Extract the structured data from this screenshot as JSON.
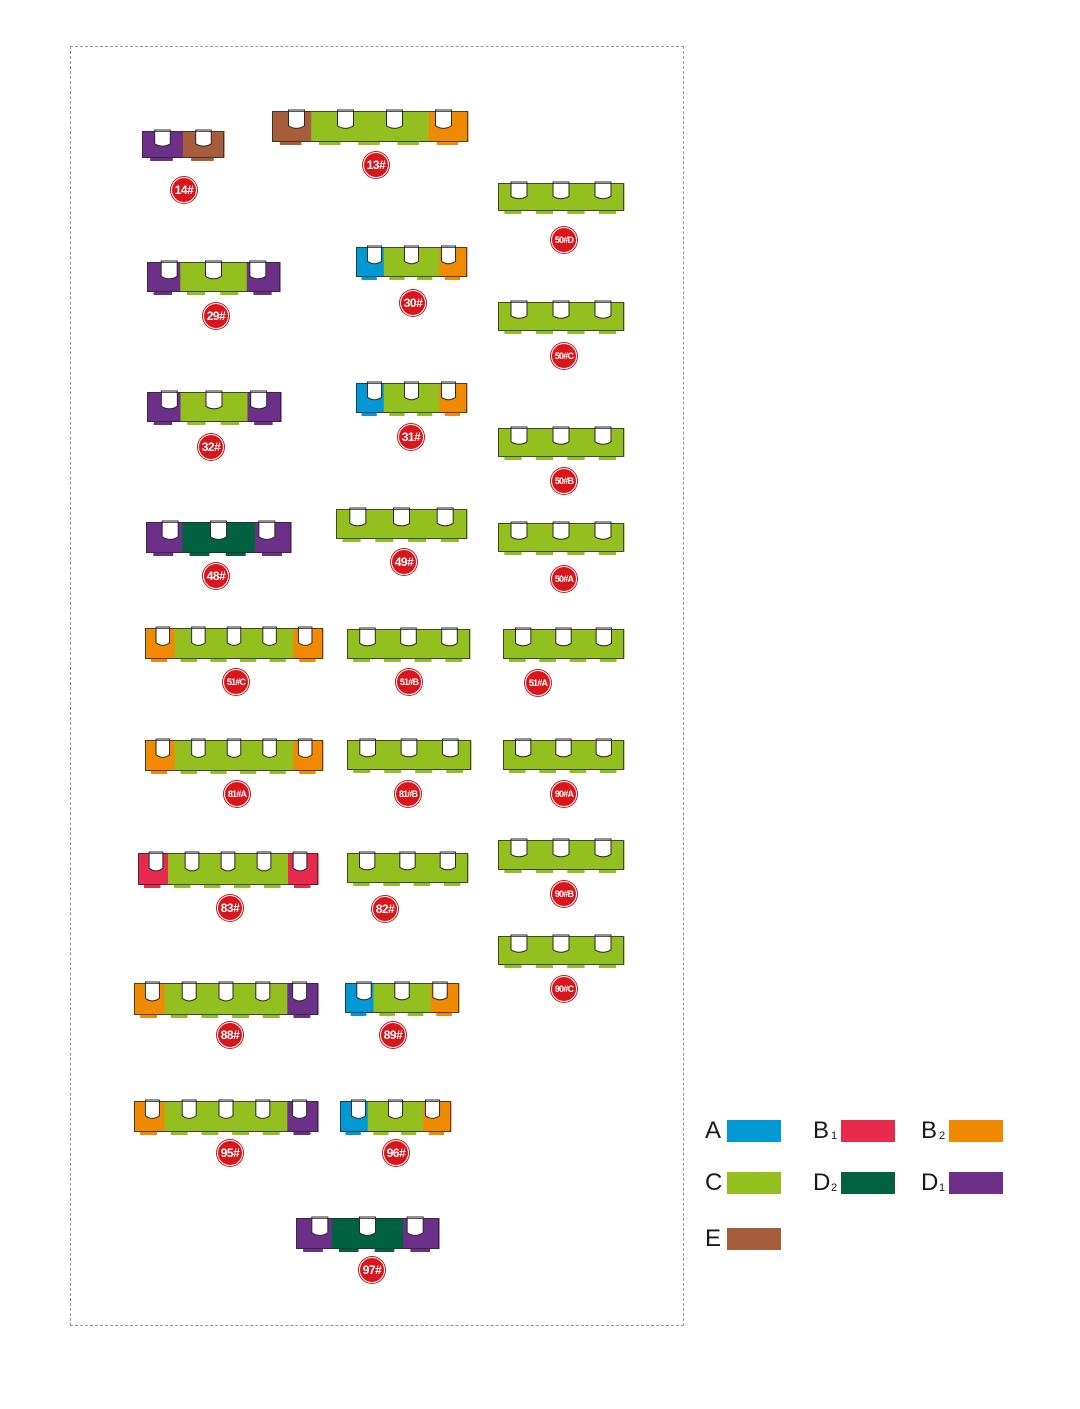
{
  "colors": {
    "A": "#0099d4",
    "B1": "#e8294b",
    "B2": "#f08a00",
    "C": "#93c01f",
    "D2": "#006241",
    "D1": "#6d3089",
    "E": "#a65d3b"
  },
  "buildings": [
    {
      "id": "b14",
      "label": "14#",
      "segments": [
        "D1",
        "E"
      ]
    },
    {
      "id": "b13",
      "label": "13#",
      "segments": [
        "E",
        "C",
        "C",
        "C",
        "B2"
      ]
    },
    {
      "id": "b50D",
      "label": "50#D",
      "segments": [
        "C",
        "C",
        "C",
        "C"
      ]
    },
    {
      "id": "b29",
      "label": "29#",
      "segments": [
        "D1",
        "C",
        "C",
        "D1"
      ]
    },
    {
      "id": "b30",
      "label": "30#",
      "segments": [
        "A",
        "C",
        "C",
        "B2"
      ]
    },
    {
      "id": "b50C",
      "label": "50#C",
      "segments": [
        "C",
        "C",
        "C",
        "C"
      ]
    },
    {
      "id": "b32",
      "label": "32#",
      "segments": [
        "D1",
        "C",
        "C",
        "D1"
      ]
    },
    {
      "id": "b31",
      "label": "31#",
      "segments": [
        "A",
        "C",
        "C",
        "B2"
      ]
    },
    {
      "id": "b50B",
      "label": "50#B",
      "segments": [
        "C",
        "C",
        "C",
        "C"
      ]
    },
    {
      "id": "b48",
      "label": "48#",
      "segments": [
        "D1",
        "D2",
        "D2",
        "D1"
      ]
    },
    {
      "id": "b49",
      "label": "49#",
      "segments": [
        "C",
        "C",
        "C",
        "C"
      ]
    },
    {
      "id": "b50A",
      "label": "50#A",
      "segments": [
        "C",
        "C",
        "C",
        "C"
      ]
    },
    {
      "id": "b51C",
      "label": "51#C",
      "segments": [
        "B2",
        "C",
        "C",
        "C",
        "C",
        "B2"
      ]
    },
    {
      "id": "b51B",
      "label": "51#B",
      "segments": [
        "C",
        "C",
        "C",
        "C"
      ]
    },
    {
      "id": "b51A",
      "label": "51#A",
      "segments": [
        "C",
        "C",
        "C",
        "C"
      ]
    },
    {
      "id": "b81A",
      "label": "81#A",
      "segments": [
        "B2",
        "C",
        "C",
        "C",
        "C",
        "B2"
      ]
    },
    {
      "id": "b81B",
      "label": "81#B",
      "segments": [
        "C",
        "C",
        "C",
        "C"
      ]
    },
    {
      "id": "b90A",
      "label": "90#A",
      "segments": [
        "C",
        "C",
        "C",
        "C"
      ]
    },
    {
      "id": "b83",
      "label": "83#",
      "segments": [
        "B1",
        "C",
        "C",
        "C",
        "C",
        "B1"
      ]
    },
    {
      "id": "b82",
      "label": "82#",
      "segments": [
        "C",
        "C",
        "C",
        "C"
      ]
    },
    {
      "id": "b90B",
      "label": "90#B",
      "segments": [
        "C",
        "C",
        "C",
        "C"
      ]
    },
    {
      "id": "b90C",
      "label": "90#C",
      "segments": [
        "C",
        "C",
        "C",
        "C"
      ]
    },
    {
      "id": "b88",
      "label": "88#",
      "segments": [
        "B2",
        "C",
        "C",
        "C",
        "C",
        "D1"
      ]
    },
    {
      "id": "b89",
      "label": "89#",
      "segments": [
        "A",
        "C",
        "C",
        "B2"
      ]
    },
    {
      "id": "b95",
      "label": "95#",
      "segments": [
        "B2",
        "C",
        "C",
        "C",
        "C",
        "D1"
      ]
    },
    {
      "id": "b96",
      "label": "96#",
      "segments": [
        "A",
        "C",
        "C",
        "B2"
      ]
    },
    {
      "id": "b97",
      "label": "97#",
      "segments": [
        "D1",
        "D2",
        "D2",
        "D1"
      ]
    }
  ],
  "legend": {
    "items": [
      {
        "key": "A",
        "main": "A",
        "sub": "",
        "color_key": "A"
      },
      {
        "key": "B1",
        "main": "B",
        "sub": "1",
        "color_key": "B1"
      },
      {
        "key": "B2",
        "main": "B",
        "sub": "2",
        "color_key": "B2"
      },
      {
        "key": "C",
        "main": "C",
        "sub": "",
        "color_key": "C"
      },
      {
        "key": "D2",
        "main": "D",
        "sub": "2",
        "color_key": "D2"
      },
      {
        "key": "D1",
        "main": "D",
        "sub": "1",
        "color_key": "D1"
      },
      {
        "key": "E",
        "main": "E",
        "sub": "",
        "color_key": "E"
      }
    ]
  }
}
